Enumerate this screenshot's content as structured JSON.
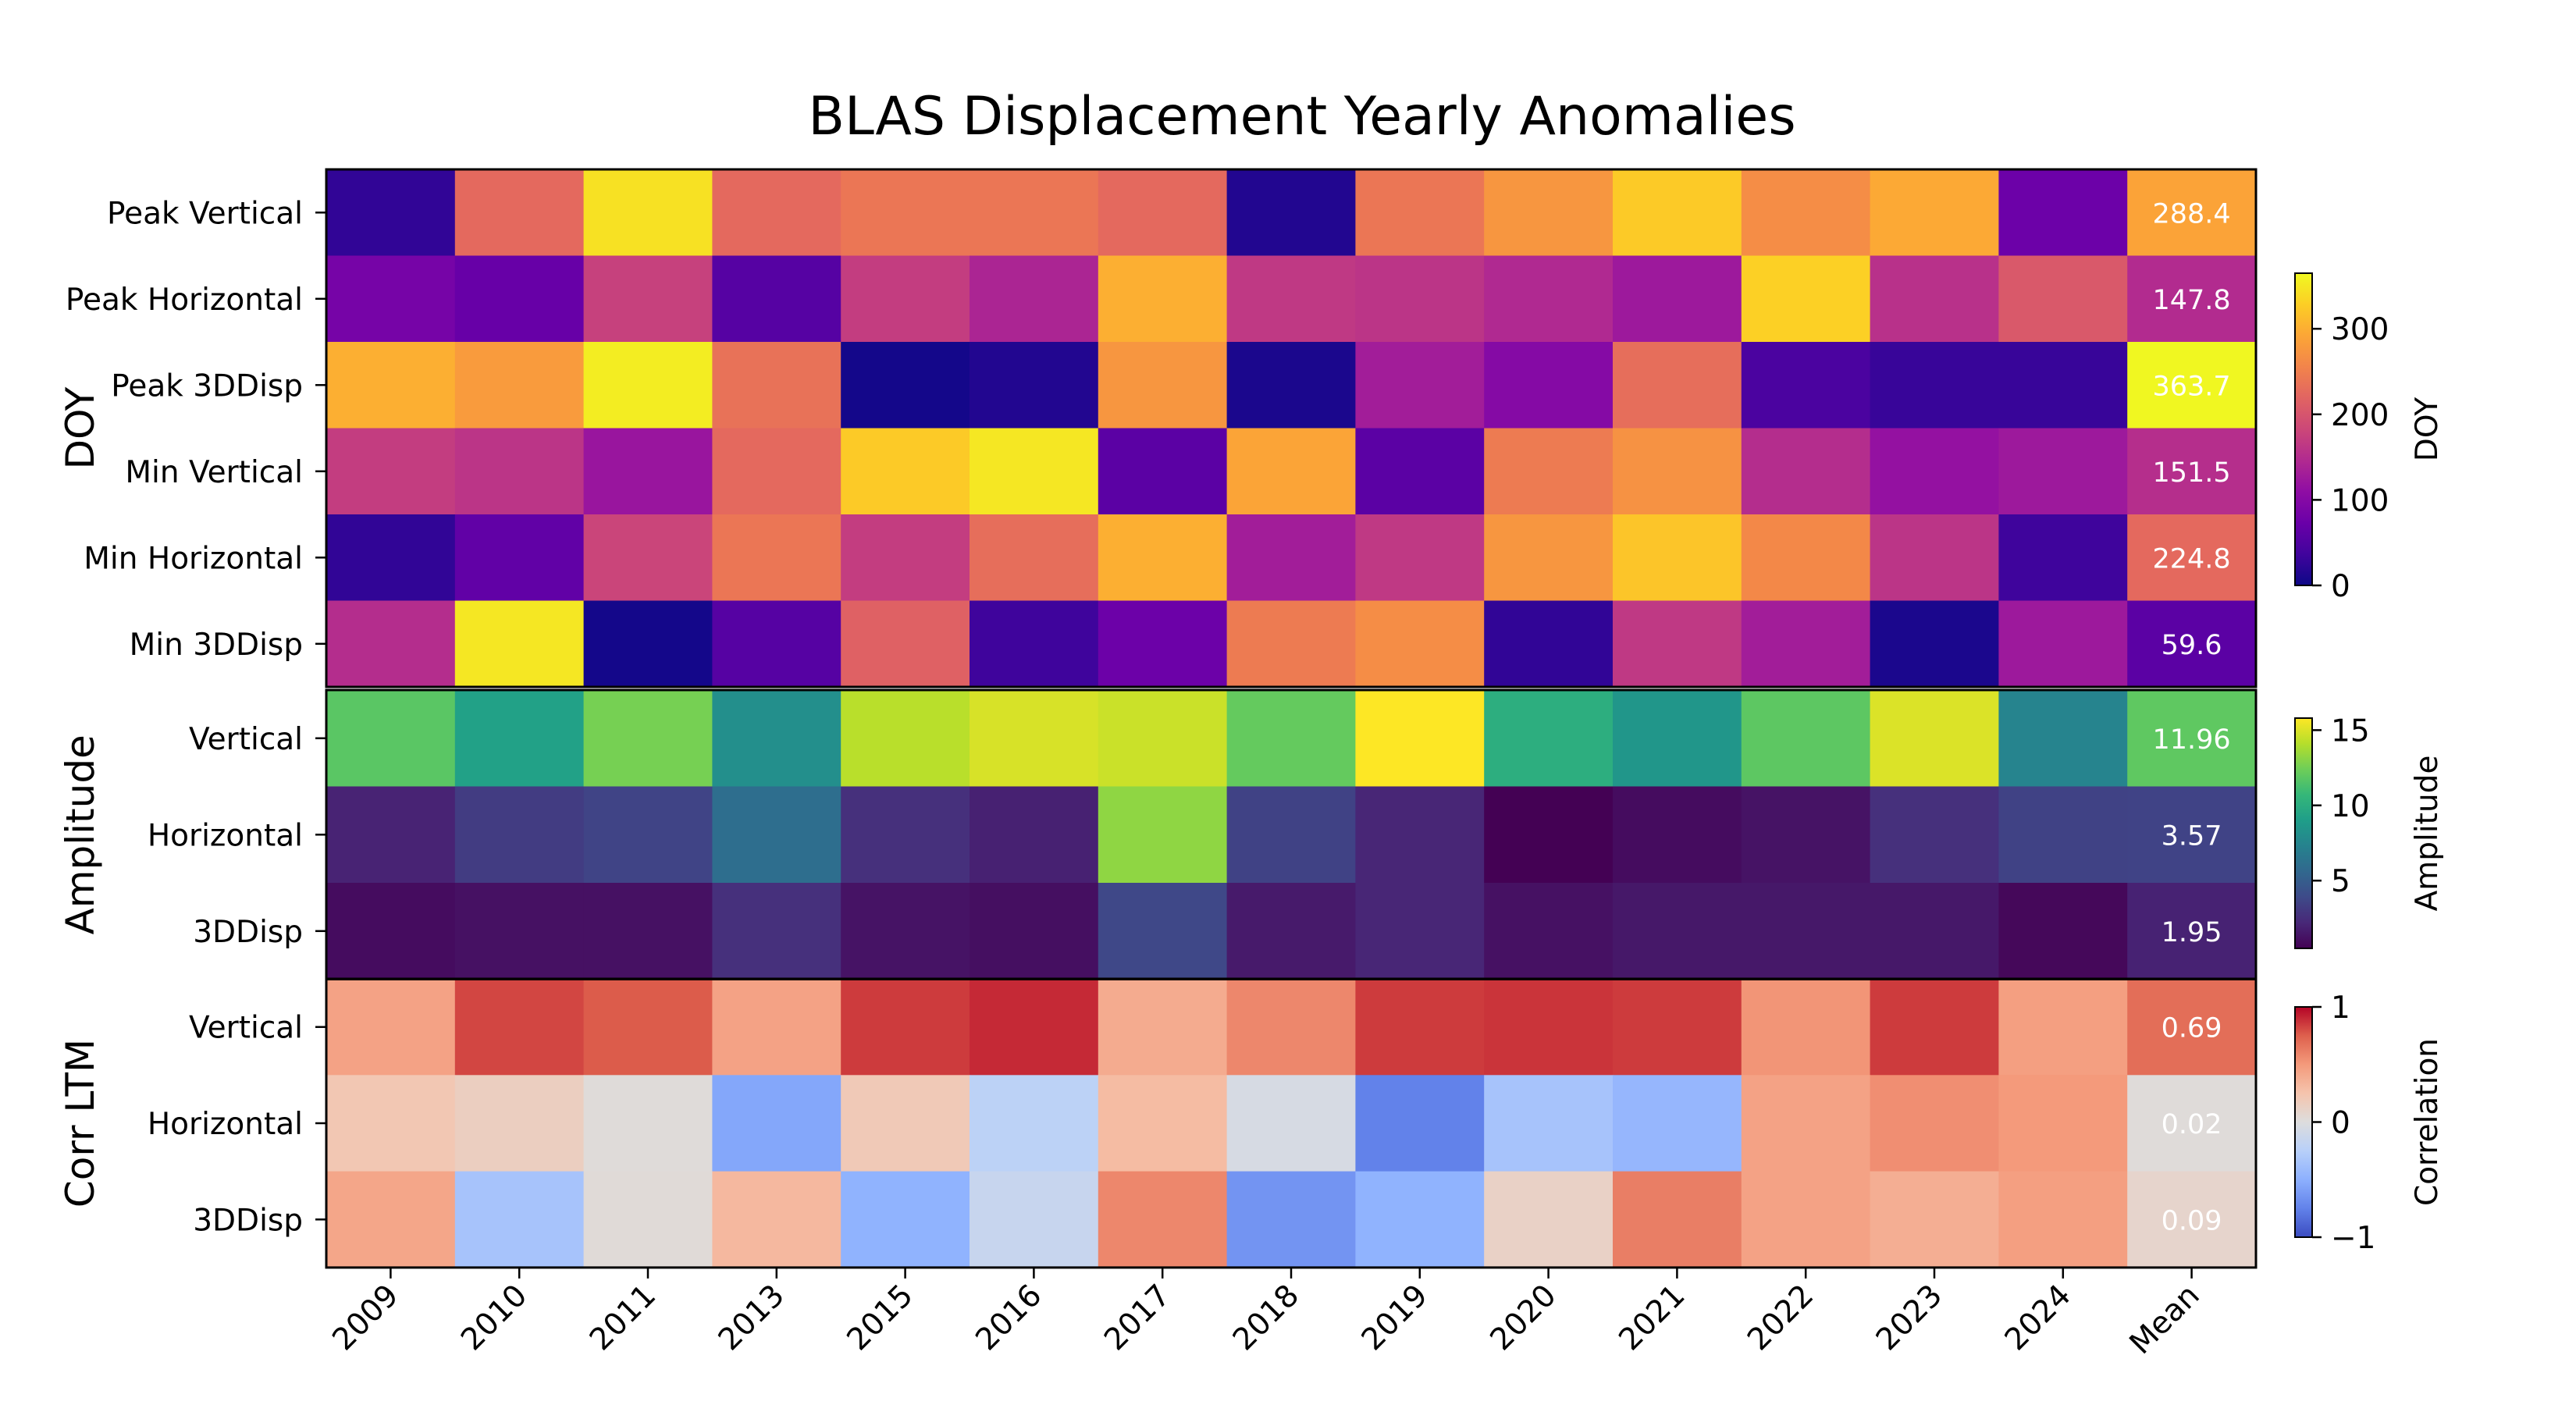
{
  "chart_data": {
    "type": "heatmap",
    "title": "BLAS Displacement Yearly Anomalies",
    "columns": [
      "2009",
      "2010",
      "2011",
      "2013",
      "2015",
      "2016",
      "2017",
      "2018",
      "2019",
      "2020",
      "2021",
      "2022",
      "2023",
      "2024",
      "Mean"
    ],
    "panels": [
      {
        "name": "DOY",
        "colormap": "plasma",
        "vmin": 0,
        "vmax": 365,
        "colorbar_label": "DOY",
        "colorbar_ticks": [
          {
            "value": 0,
            "label": "0"
          },
          {
            "value": 100,
            "label": "100"
          },
          {
            "value": 200,
            "label": "200"
          },
          {
            "value": 300,
            "label": "300"
          }
        ],
        "rows": [
          {
            "label": "Peak Vertical",
            "values": [
              25,
              225,
              345,
              225,
              240,
              240,
              225,
              15,
              240,
              275,
              325,
              265,
              295,
              75,
              288.4
            ]
          },
          {
            "label": "Peak Horizontal",
            "values": [
              85,
              70,
              175,
              55,
              170,
              140,
              300,
              165,
              160,
              145,
              125,
              330,
              155,
              205,
              147.8
            ]
          },
          {
            "label": "Peak 3DDisp",
            "values": [
              300,
              280,
              355,
              235,
              5,
              15,
              275,
              10,
              130,
              100,
              230,
              45,
              30,
              30,
              363.7
            ]
          },
          {
            "label": "Min Vertical",
            "values": [
              170,
              160,
              120,
              225,
              325,
              350,
              60,
              290,
              60,
              245,
              270,
              150,
              115,
              125,
              151.5
            ]
          },
          {
            "label": "Min Horizontal",
            "values": [
              25,
              65,
              180,
              240,
              170,
              230,
              300,
              130,
              165,
              275,
              320,
              260,
              160,
              35,
              224.8
            ]
          },
          {
            "label": "Min 3DDisp",
            "values": [
              150,
              350,
              5,
              55,
              215,
              35,
              75,
              245,
              265,
              25,
              165,
              130,
              10,
              125,
              59.6
            ]
          }
        ],
        "cell_labels": [
          "288.4",
          "147.8",
          "363.7",
          "151.5",
          "224.8",
          "59.6"
        ]
      },
      {
        "name": "Amplitude",
        "colormap": "viridis",
        "vmin": 0.5,
        "vmax": 15.8,
        "colorbar_label": "Amplitude",
        "colorbar_ticks": [
          {
            "value": 5,
            "label": "5"
          },
          {
            "value": 10,
            "label": "10"
          },
          {
            "value": 15,
            "label": "15"
          }
        ],
        "rows": [
          {
            "label": "Vertical",
            "values": [
              11.8,
              9.2,
              12.6,
              8.1,
              14.2,
              14.9,
              14.6,
              12.1,
              15.8,
              10.1,
              8.5,
              11.9,
              15.0,
              7.4,
              11.96
            ]
          },
          {
            "label": "Horizontal",
            "values": [
              2.0,
              3.2,
              3.6,
              6.0,
              2.6,
              1.9,
              13.2,
              3.5,
              2.1,
              0.5,
              1.0,
              1.3,
              2.6,
              3.5,
              3.57
            ]
          },
          {
            "label": "3DDisp",
            "values": [
              1.0,
              1.2,
              1.2,
              2.6,
              1.3,
              1.1,
              3.8,
              1.6,
              2.1,
              1.2,
              1.5,
              1.5,
              1.5,
              0.8,
              1.95
            ]
          }
        ],
        "cell_labels": [
          "11.96",
          "3.57",
          "1.95"
        ]
      },
      {
        "name": "Corr LTM",
        "colormap": "coolwarm",
        "vmin": -1,
        "vmax": 1,
        "colorbar_label": "Correlation",
        "colorbar_ticks": [
          {
            "value": -1,
            "label": "−1"
          },
          {
            "value": 0,
            "label": "0"
          },
          {
            "value": 1,
            "label": "1"
          }
        ],
        "rows": [
          {
            "label": "Vertical",
            "values": [
              0.45,
              0.82,
              0.76,
              0.45,
              0.85,
              0.9,
              0.4,
              0.58,
              0.85,
              0.87,
              0.85,
              0.52,
              0.85,
              0.47,
              0.69
            ]
          },
          {
            "label": "Horizontal",
            "values": [
              0.22,
              0.15,
              0.02,
              -0.55,
              0.2,
              -0.22,
              0.3,
              -0.05,
              -0.75,
              -0.35,
              -0.45,
              0.45,
              0.55,
              0.5,
              0.02
            ]
          },
          {
            "label": "3DDisp",
            "values": [
              0.43,
              -0.35,
              0.03,
              0.32,
              -0.48,
              -0.15,
              0.58,
              -0.65,
              -0.48,
              0.12,
              0.62,
              0.45,
              0.38,
              0.47,
              0.09
            ]
          }
        ],
        "cell_labels": [
          "0.69",
          "0.02",
          "0.09"
        ]
      }
    ]
  }
}
